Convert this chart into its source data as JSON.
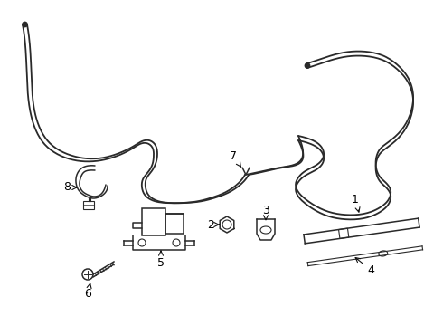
{
  "background_color": "#ffffff",
  "line_color": "#2a2a2a",
  "label_color": "#000000",
  "fig_width": 4.9,
  "fig_height": 3.6,
  "dpi": 100,
  "lw_tube": 1.3,
  "lw_part": 1.1,
  "lw_thin": 0.8
}
